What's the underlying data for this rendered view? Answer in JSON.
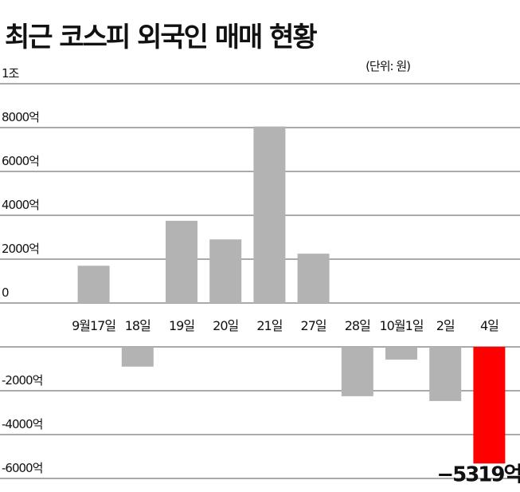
{
  "chart_data": {
    "type": "bar",
    "title": "최근 코스피 외국인 매매 현황",
    "subtitle": "(단위: 원)",
    "categories": [
      "9월17일",
      "18일",
      "19일",
      "20일",
      "21일",
      "27일",
      "28일",
      "10월1일",
      "2일",
      "4일"
    ],
    "values": [
      1700,
      -900,
      3750,
      2900,
      8050,
      2250,
      -2250,
      -580,
      -2470,
      -5319
    ],
    "value_labels": [
      null,
      null,
      null,
      null,
      null,
      null,
      null,
      null,
      null,
      "−5319억"
    ],
    "colors": [
      "#b3b3b3",
      "#b3b3b3",
      "#b3b3b3",
      "#b3b3b3",
      "#b3b3b3",
      "#b3b3b3",
      "#b3b3b3",
      "#b3b3b3",
      "#b3b3b3",
      "#ff0000"
    ],
    "ylim": [
      -6000,
      10000
    ],
    "yticks": [
      {
        "value": 10000,
        "label": "1조"
      },
      {
        "value": 8000,
        "label": "8000억"
      },
      {
        "value": 6000,
        "label": "6000억"
      },
      {
        "value": 4000,
        "label": "4000억"
      },
      {
        "value": 2000,
        "label": "2000억"
      },
      0,
      {
        "value": -2000,
        "label": "-2000억"
      },
      {
        "value": -4000,
        "label": "-4000억"
      },
      {
        "value": -6000,
        "label": "-6000억"
      }
    ],
    "grid": true
  }
}
